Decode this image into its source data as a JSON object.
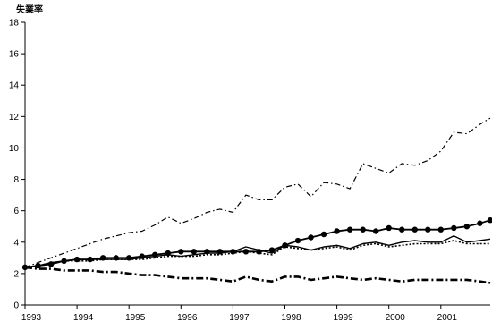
{
  "chart_data": {
    "type": "line",
    "title": "",
    "xlabel": "",
    "ylabel": "失業率",
    "xlim": [
      1993,
      2001.95
    ],
    "ylim": [
      0,
      18
    ],
    "y_ticks": [
      0,
      2,
      4,
      6,
      8,
      10,
      12,
      14,
      16,
      18
    ],
    "x_ticks": [
      1993,
      1994,
      1995,
      1996,
      1997,
      1998,
      1999,
      2000,
      2001
    ],
    "grid": false,
    "legend": "none",
    "series": [
      {
        "style": "dash-dot",
        "color": "#000000",
        "x": [
          1993,
          1993.25,
          1993.5,
          1993.75,
          1994,
          1994.25,
          1994.5,
          1994.75,
          1995,
          1995.25,
          1995.5,
          1995.75,
          1996,
          1996.25,
          1996.5,
          1996.75,
          1997,
          1997.25,
          1997.5,
          1997.75,
          1998,
          1998.25,
          1998.5,
          1998.75,
          1999,
          1999.25,
          1999.5,
          1999.75,
          2000,
          2000.25,
          2000.5,
          2000.75,
          2001,
          2001.25,
          2001.5,
          2001.75,
          2001.95
        ],
        "values": [
          2.4,
          2.7,
          3.0,
          3.3,
          3.6,
          3.9,
          4.2,
          4.4,
          4.6,
          4.7,
          5.1,
          5.6,
          5.2,
          5.5,
          5.9,
          6.1,
          5.9,
          7.0,
          6.7,
          6.7,
          7.5,
          7.7,
          6.9,
          7.8,
          7.7,
          7.4,
          9.0,
          8.7,
          8.4,
          9.0,
          8.9,
          9.2,
          9.8,
          11.0,
          10.9,
          11.5,
          11.9
        ]
      },
      {
        "style": "solid-circle-markers",
        "color": "#000000",
        "x": [
          1993,
          1993.25,
          1993.5,
          1993.75,
          1994,
          1994.25,
          1994.5,
          1994.75,
          1995,
          1995.25,
          1995.5,
          1995.75,
          1996,
          1996.25,
          1996.5,
          1996.75,
          1997,
          1997.25,
          1997.5,
          1997.75,
          1998,
          1998.25,
          1998.5,
          1998.75,
          1999,
          1999.25,
          1999.5,
          1999.75,
          2000,
          2000.25,
          2000.5,
          2000.75,
          2001,
          2001.25,
          2001.5,
          2001.75,
          2001.95
        ],
        "values": [
          2.4,
          2.5,
          2.6,
          2.8,
          2.9,
          2.9,
          3.0,
          3.0,
          3.0,
          3.1,
          3.2,
          3.3,
          3.4,
          3.4,
          3.4,
          3.4,
          3.4,
          3.4,
          3.4,
          3.5,
          3.8,
          4.1,
          4.3,
          4.5,
          4.7,
          4.8,
          4.8,
          4.7,
          4.9,
          4.8,
          4.8,
          4.8,
          4.8,
          4.9,
          5.0,
          5.2,
          5.4
        ]
      },
      {
        "style": "solid",
        "color": "#000000",
        "x": [
          1993,
          1993.25,
          1993.5,
          1993.75,
          1994,
          1994.25,
          1994.5,
          1994.75,
          1995,
          1995.25,
          1995.5,
          1995.75,
          1996,
          1996.25,
          1996.5,
          1996.75,
          1997,
          1997.25,
          1997.5,
          1997.75,
          1998,
          1998.25,
          1998.5,
          1998.75,
          1999,
          1999.25,
          1999.5,
          1999.75,
          2000,
          2000.25,
          2000.5,
          2000.75,
          2001,
          2001.25,
          2001.5,
          2001.75,
          2001.95
        ],
        "values": [
          2.4,
          2.5,
          2.7,
          2.8,
          2.9,
          2.9,
          2.9,
          2.9,
          2.9,
          3.0,
          3.1,
          3.2,
          3.1,
          3.2,
          3.3,
          3.3,
          3.4,
          3.7,
          3.5,
          3.3,
          3.8,
          3.7,
          3.5,
          3.7,
          3.8,
          3.6,
          3.9,
          4.0,
          3.8,
          4.0,
          4.1,
          4.0,
          4.0,
          4.4,
          4.0,
          4.1,
          4.2
        ]
      },
      {
        "style": "dotted",
        "color": "#000000",
        "x": [
          1993,
          1993.25,
          1993.5,
          1993.75,
          1994,
          1994.25,
          1994.5,
          1994.75,
          1995,
          1995.25,
          1995.5,
          1995.75,
          1996,
          1996.25,
          1996.5,
          1996.75,
          1997,
          1997.25,
          1997.5,
          1997.75,
          1998,
          1998.25,
          1998.5,
          1998.75,
          1999,
          1999.25,
          1999.5,
          1999.75,
          2000,
          2000.25,
          2000.5,
          2000.75,
          2001,
          2001.25,
          2001.5,
          2001.75,
          2001.95
        ],
        "values": [
          2.4,
          2.5,
          2.6,
          2.8,
          2.8,
          2.8,
          2.9,
          2.9,
          2.9,
          2.9,
          3.0,
          3.1,
          3.1,
          3.1,
          3.2,
          3.2,
          3.3,
          3.4,
          3.3,
          3.2,
          3.7,
          3.6,
          3.5,
          3.6,
          3.7,
          3.5,
          3.8,
          3.9,
          3.7,
          3.8,
          3.9,
          3.9,
          3.9,
          4.1,
          3.9,
          3.9,
          3.9
        ]
      },
      {
        "style": "dash-dot-heavy",
        "color": "#000000",
        "x": [
          1993,
          1993.25,
          1993.5,
          1993.75,
          1994,
          1994.25,
          1994.5,
          1994.75,
          1995,
          1995.25,
          1995.5,
          1995.75,
          1996,
          1996.25,
          1996.5,
          1996.75,
          1997,
          1997.25,
          1997.5,
          1997.75,
          1998,
          1998.25,
          1998.5,
          1998.75,
          1999,
          1999.25,
          1999.5,
          1999.75,
          2000,
          2000.25,
          2000.5,
          2000.75,
          2001,
          2001.25,
          2001.5,
          2001.75,
          2001.95
        ],
        "values": [
          2.4,
          2.3,
          2.3,
          2.2,
          2.2,
          2.2,
          2.1,
          2.1,
          2.0,
          1.9,
          1.9,
          1.8,
          1.7,
          1.7,
          1.7,
          1.6,
          1.5,
          1.8,
          1.6,
          1.5,
          1.8,
          1.8,
          1.6,
          1.7,
          1.8,
          1.7,
          1.6,
          1.7,
          1.6,
          1.5,
          1.6,
          1.6,
          1.6,
          1.6,
          1.6,
          1.5,
          1.4
        ]
      }
    ]
  }
}
